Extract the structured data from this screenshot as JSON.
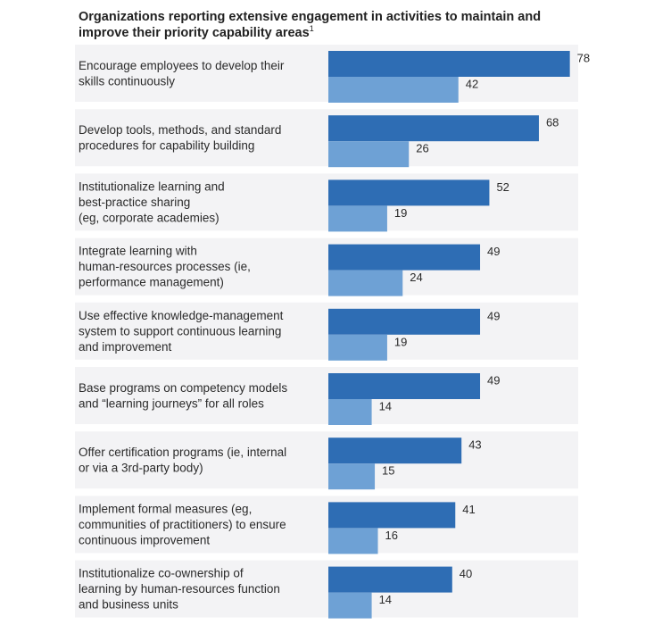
{
  "title": "Organizations reporting extensive engagement in activities to maintain and improve their priority capability areas",
  "title_footnote": "1",
  "colors": {
    "series_1": "#2e6db4",
    "series_2": "#6ea1d5",
    "row_band": "#f3f3f5",
    "text": "#2a2a2a"
  },
  "chart_data": {
    "type": "bar",
    "orientation": "horizontal",
    "title": "Organizations reporting extensive engagement in activities to maintain and improve their priority capability areas",
    "categories": [
      [
        "Encourage employees to develop their",
        "skills continuously"
      ],
      [
        "Develop tools, methods, and standard",
        "procedures for capability building"
      ],
      [
        "Institutionalize learning and",
        "best-practice sharing",
        "(eg, corporate academies)"
      ],
      [
        "Integrate learning with",
        "human-resources processes (ie,",
        "performance management)"
      ],
      [
        "Use effective knowledge-management",
        "system to support continuous learning",
        "and improvement"
      ],
      [
        "Base programs on competency models",
        "and “learning journeys” for all roles"
      ],
      [
        "Offer certification programs (ie, internal",
        "or via a 3rd-party body)"
      ],
      [
        "Implement formal measures (eg,",
        "communities of practitioners) to ensure",
        "continuous improvement"
      ],
      [
        "Institutionalize co-ownership of",
        "learning by human-resources function",
        "and business units"
      ]
    ],
    "series": [
      {
        "values": [
          78,
          68,
          52,
          49,
          49,
          49,
          43,
          41,
          40
        ]
      },
      {
        "values": [
          42,
          26,
          19,
          24,
          19,
          14,
          15,
          16,
          14
        ]
      }
    ],
    "xlim": [
      0,
      100
    ],
    "grid": false,
    "legend": "none"
  }
}
